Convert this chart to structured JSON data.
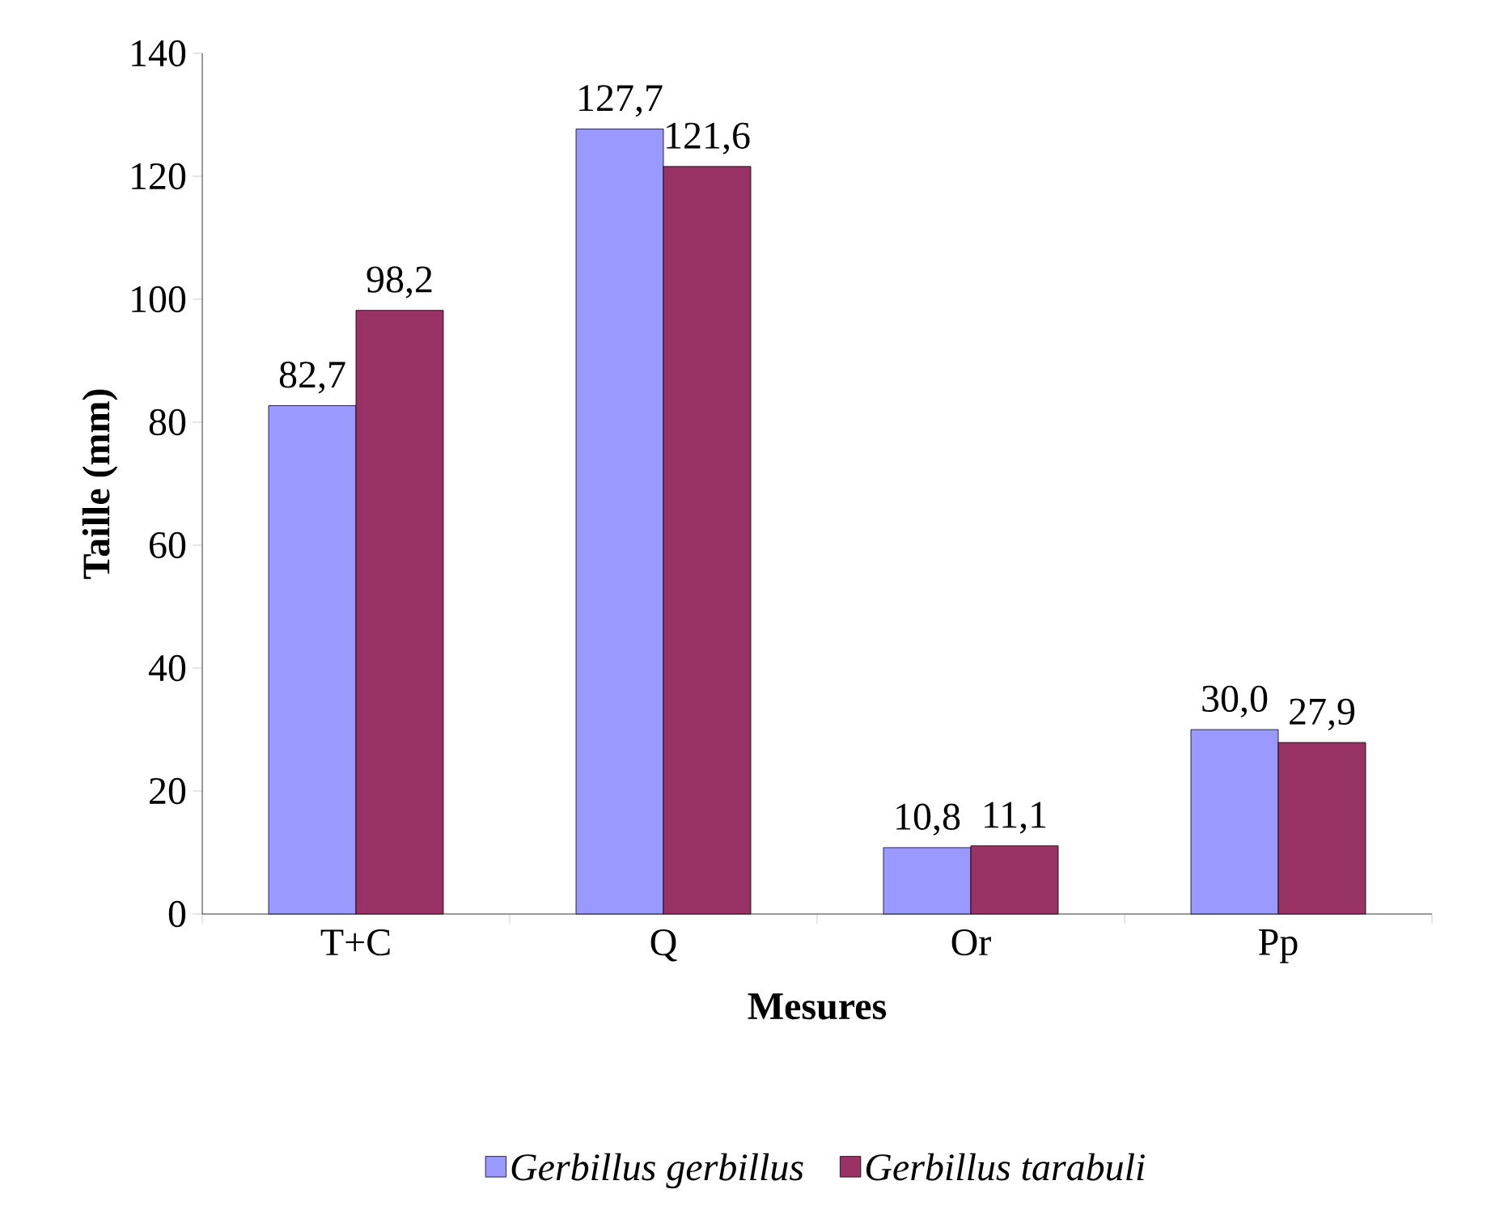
{
  "chart_data": {
    "type": "bar",
    "xlabel": "Mesures",
    "ylabel": "Taille (mm)",
    "categories": [
      "T+C",
      "Q",
      "Or",
      "Pp"
    ],
    "series": [
      {
        "name": "Gerbillus gerbillus",
        "color": "#9999ff",
        "values": [
          82.7,
          127.7,
          10.8,
          30.0
        ],
        "value_labels": [
          "82,7",
          "127,7",
          "10,8",
          "30,0"
        ]
      },
      {
        "name": "Gerbillus tarabuli",
        "color": "#993366",
        "values": [
          98.2,
          121.6,
          11.1,
          27.9
        ],
        "value_labels": [
          "98,2",
          "121,6",
          "11,1",
          "27,9"
        ]
      }
    ],
    "ylim": [
      0,
      140
    ],
    "yticks": [
      0,
      20,
      40,
      60,
      80,
      100,
      120,
      140
    ],
    "grid": false,
    "legend": "bottom"
  }
}
